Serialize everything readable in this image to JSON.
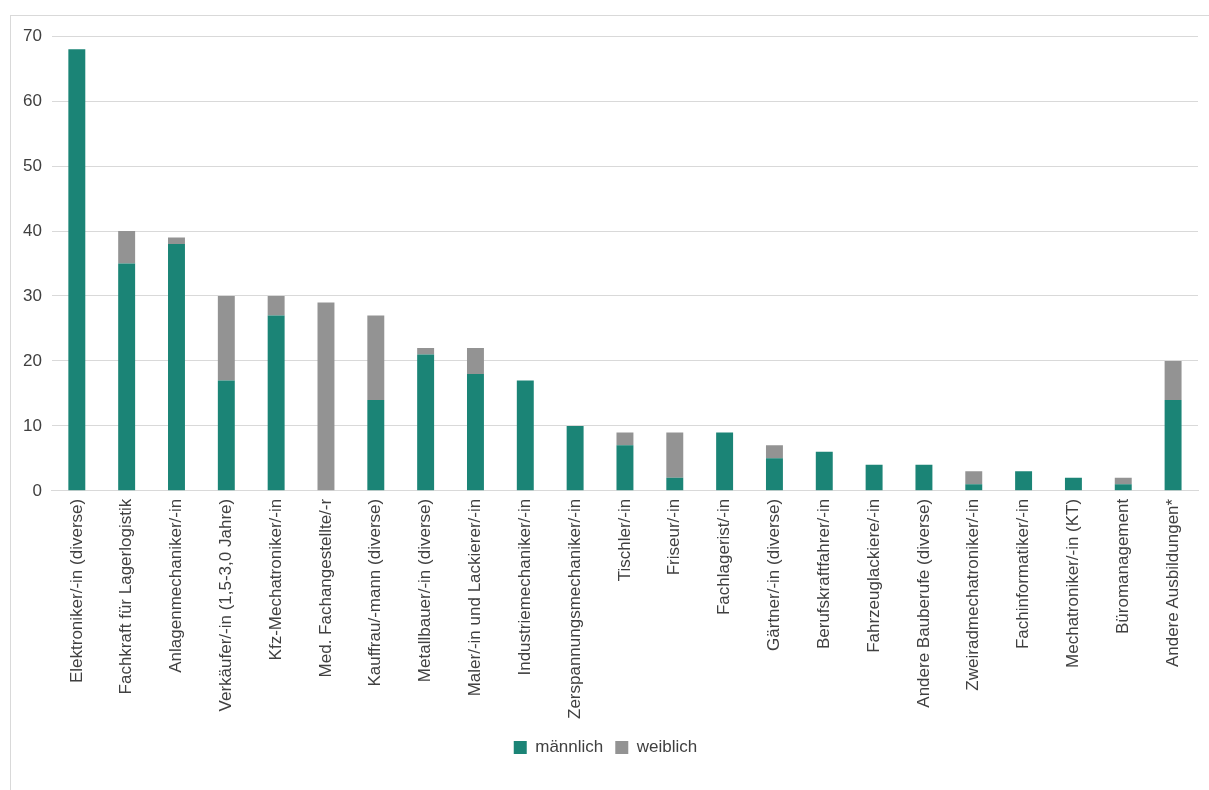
{
  "chart_data": {
    "type": "bar",
    "stacked": true,
    "categories": [
      "Elektroniker/-in (diverse)",
      "Fachkraft für Lagerlogistik",
      "Anlagenmechaniker/-in",
      "Verkäufer/-in (1,5-3,0 Jahre)",
      "Kfz-Mechatroniker/-in",
      "Med. Fachangestellte/-r",
      "Kauffrau/-mann (diverse)",
      "Metallbauer/-in (diverse)",
      "Maler/-in und Lackierer/-in",
      "Industriemechaniker/-in",
      "Zerspannungsmechaniker/-in",
      "Tischler/-in",
      "Friseur/-in",
      "Fachlagerist/-in",
      "Gärtner/-in (diverse)",
      "Berufskraftfahrer/-in",
      "Fahrzeuglackiere/-in",
      "Andere Bauberufe (diverse)",
      "Zweiradmechatroniker/-in",
      "Fachinformatiker/-in",
      "Mechatroniker/-in (KT)",
      "Büromanagement",
      "Andere Ausbildungen*"
    ],
    "series": [
      {
        "name": "männlich",
        "color": "#1b8476",
        "values": [
          68,
          35,
          38,
          17,
          27,
          0,
          14,
          21,
          18,
          17,
          10,
          7,
          2,
          9,
          5,
          6,
          4,
          4,
          1,
          3,
          2,
          1,
          14
        ]
      },
      {
        "name": "weiblich",
        "color": "#939393",
        "values": [
          0,
          5,
          1,
          13,
          3,
          29,
          13,
          1,
          4,
          0,
          0,
          2,
          7,
          0,
          2,
          0,
          0,
          0,
          2,
          0,
          0,
          1,
          6
        ]
      }
    ],
    "ylim": [
      0,
      70
    ],
    "yticks": [
      0,
      10,
      20,
      30,
      40,
      50,
      60,
      70
    ],
    "grid": "y",
    "legend": "bottom"
  }
}
